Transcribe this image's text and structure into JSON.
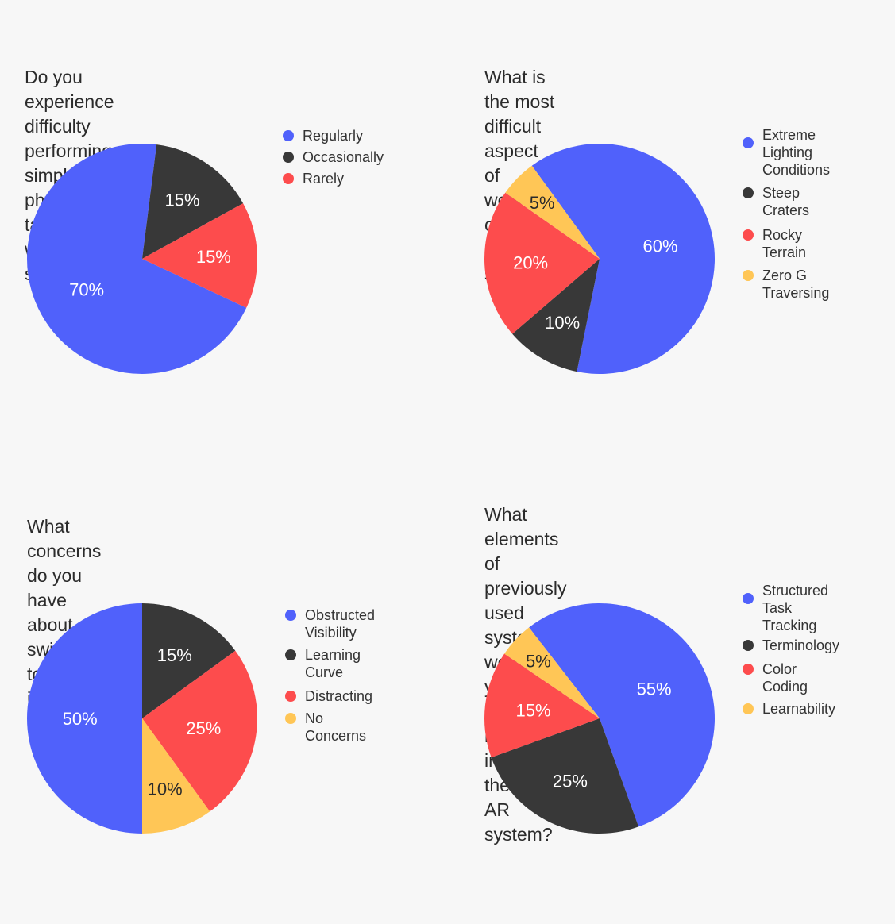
{
  "colors": {
    "blue": "#5061fb",
    "dark": "#383838",
    "red": "#fd4c4d",
    "yellow": "#ffc656",
    "label_light": "#ffffff",
    "label_dark": "#2b2b2b"
  },
  "chart_data": [
    {
      "type": "pie",
      "title": "Do you experience difficulty performing\nsimple physical tasks within the spacesuit?",
      "categories": [
        "Regularly",
        "Occasionally",
        "Rarely"
      ],
      "values": [
        70,
        15,
        15
      ],
      "data_labels": [
        "70%",
        "15%",
        "15%"
      ],
      "colors": [
        "#5061fb",
        "#383838",
        "#fd4c4d"
      ],
      "legend_position": "top-right"
    },
    {
      "type": "pie",
      "title": "What is the most difficult aspect of\nworking on the lunar surface?",
      "categories": [
        "Extreme Lighting\nConditions",
        "Steep Craters",
        "Rocky Terrain",
        "Zero G Traversing"
      ],
      "values": [
        60,
        10,
        20,
        5
      ],
      "data_labels": [
        "60%",
        "10%",
        "20%",
        "5%"
      ],
      "colors": [
        "#5061fb",
        "#383838",
        "#fd4c4d",
        "#ffc656"
      ],
      "legend_position": "top-right"
    },
    {
      "type": "pie",
      "title": "What concerns do you have about\nswitching to an AR interface?",
      "categories": [
        "Obstructed Visibility",
        "Learning Curve",
        "Distracting",
        "No Concerns"
      ],
      "values": [
        50,
        15,
        25,
        10
      ],
      "data_labels": [
        "50%",
        "15%",
        "25%",
        "10%"
      ],
      "colors": [
        "#5061fb",
        "#383838",
        "#fd4c4d",
        "#ffc656"
      ],
      "legend_position": "top-right"
    },
    {
      "type": "pie",
      "title": "What elements of previously used\nsystems would you like to be retained in\nthe new AR system?",
      "categories": [
        "Structured Task\nTracking",
        "Terminology",
        "Color Coding",
        "Learnability"
      ],
      "values": [
        55,
        25,
        15,
        5
      ],
      "data_labels": [
        "55%",
        "25%",
        "15%",
        "5%"
      ],
      "colors": [
        "#5061fb",
        "#383838",
        "#fd4c4d",
        "#ffc656"
      ],
      "legend_position": "top-right"
    }
  ]
}
